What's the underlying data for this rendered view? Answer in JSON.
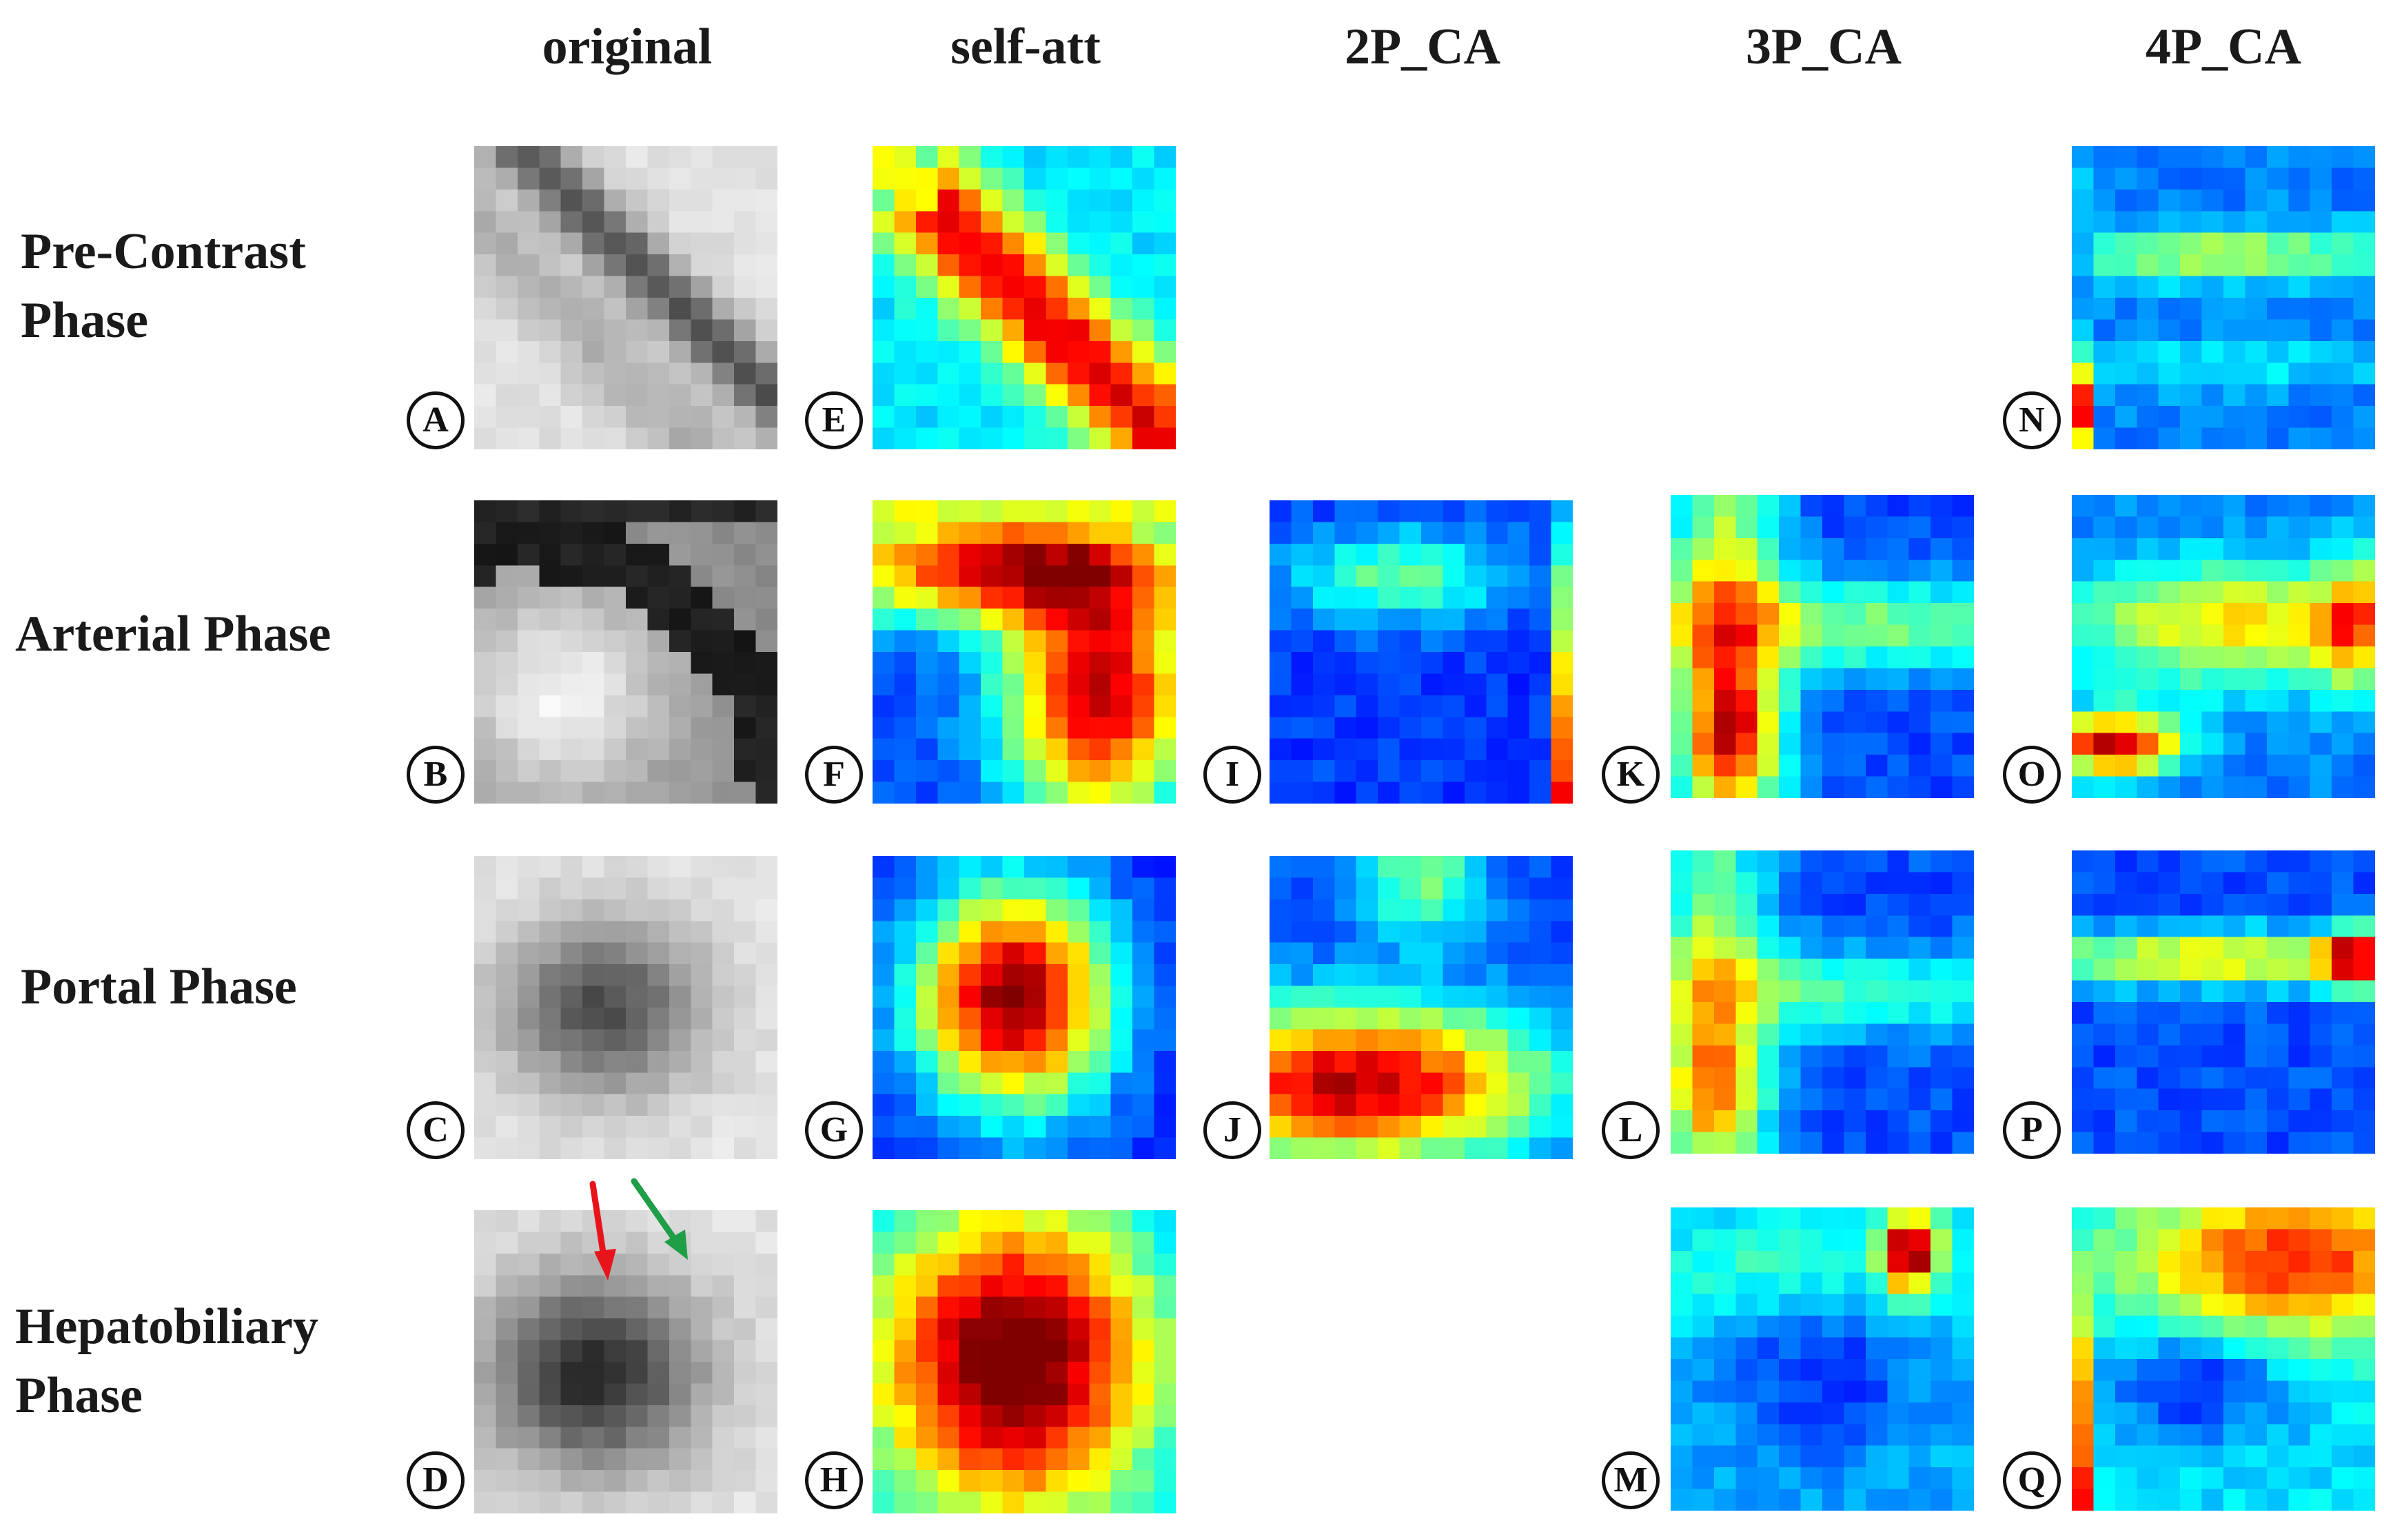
{
  "column_headers": {
    "original": "original",
    "self_att": "self-att",
    "ca2": "2P_CA",
    "ca3": "3P_CA",
    "ca4": "4P_CA"
  },
  "row_labels": {
    "pre_contrast": [
      "Pre-Contrast",
      "Phase"
    ],
    "arterial": [
      "Arterial Phase"
    ],
    "portal": [
      "Portal Phase"
    ],
    "hepatobiliary": [
      "Hepatobiliary",
      "Phase"
    ]
  },
  "panel_letters": {
    "A": "A",
    "B": "B",
    "C": "C",
    "D": "D",
    "E": "E",
    "F": "F",
    "G": "G",
    "H": "H",
    "I": "I",
    "J": "J",
    "K": "K",
    "L": "L",
    "M": "M",
    "N": "N",
    "O": "O",
    "P": "P",
    "Q": "Q"
  },
  "colors": {
    "red_arrow": "#e8141c",
    "green_arrow": "#1f9e48",
    "colormap": "jet",
    "grayscale": "gray"
  },
  "panels": [
    {
      "letter": "A",
      "column": "original",
      "row": "pre_contrast",
      "kind": "grayscale",
      "pattern": "diagonal-band"
    },
    {
      "letter": "B",
      "column": "original",
      "row": "arterial",
      "kind": "grayscale",
      "pattern": "bright-blob-dark-arc"
    },
    {
      "letter": "C",
      "column": "original",
      "row": "portal",
      "kind": "grayscale",
      "pattern": "dark-lesion"
    },
    {
      "letter": "D",
      "column": "original",
      "row": "hepatobiliary",
      "kind": "grayscale",
      "pattern": "dark-lesion-large"
    },
    {
      "letter": "E",
      "column": "self_att",
      "row": "pre_contrast",
      "kind": "heatmap",
      "pattern": "diagonal-gradient"
    },
    {
      "letter": "F",
      "column": "self_att",
      "row": "arterial",
      "kind": "heatmap",
      "pattern": "upper-band-right-blob"
    },
    {
      "letter": "G",
      "column": "self_att",
      "row": "portal",
      "kind": "heatmap",
      "pattern": "central-blob"
    },
    {
      "letter": "H",
      "column": "self_att",
      "row": "hepatobiliary",
      "kind": "heatmap",
      "pattern": "large-central-blob"
    },
    {
      "letter": "I",
      "column": "ca2",
      "row": "arterial",
      "kind": "heatmap",
      "pattern": "weak-horizontal"
    },
    {
      "letter": "J",
      "column": "ca2",
      "row": "portal",
      "kind": "heatmap",
      "pattern": "lower-blob"
    },
    {
      "letter": "K",
      "column": "ca3",
      "row": "arterial",
      "kind": "heatmap",
      "pattern": "cross"
    },
    {
      "letter": "L",
      "column": "ca3",
      "row": "portal",
      "kind": "heatmap",
      "pattern": "cross-weak"
    },
    {
      "letter": "M",
      "column": "ca3",
      "row": "hepatobiliary",
      "kind": "heatmap",
      "pattern": "corner-spot"
    },
    {
      "letter": "N",
      "column": "ca4",
      "row": "pre_contrast",
      "kind": "heatmap",
      "pattern": "horizontal-bands"
    },
    {
      "letter": "O",
      "column": "ca4",
      "row": "arterial",
      "kind": "heatmap",
      "pattern": "bands-left-spot"
    },
    {
      "letter": "P",
      "column": "ca4",
      "row": "portal",
      "kind": "heatmap",
      "pattern": "single-band"
    },
    {
      "letter": "Q",
      "column": "ca4",
      "row": "hepatobiliary",
      "kind": "heatmap",
      "pattern": "corner-arc"
    }
  ]
}
